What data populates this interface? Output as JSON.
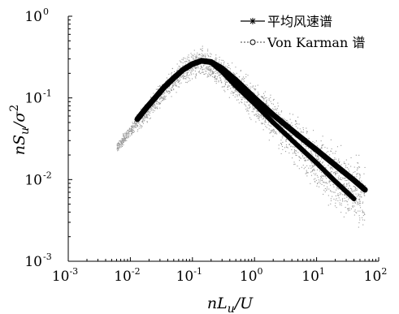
{
  "chart_data": {
    "type": "line",
    "title": "",
    "xlabel": "nL_u/U",
    "ylabel": "nS_u/σ^2",
    "x_scale": "log",
    "y_scale": "log",
    "xlim": [
      0.001,
      100
    ],
    "ylim": [
      0.001,
      1
    ],
    "x_ticks": [
      {
        "base": "10",
        "exp": "-3",
        "value": 0.001
      },
      {
        "base": "10",
        "exp": "-2",
        "value": 0.01
      },
      {
        "base": "10",
        "exp": "-1",
        "value": 0.1
      },
      {
        "base": "10",
        "exp": "0",
        "value": 1
      },
      {
        "base": "10",
        "exp": "1",
        "value": 10
      },
      {
        "base": "10",
        "exp": "2",
        "value": 100
      }
    ],
    "y_ticks": [
      {
        "base": "10",
        "exp": "-3",
        "value": 0.001
      },
      {
        "base": "10",
        "exp": "-2",
        "value": 0.01
      },
      {
        "base": "10",
        "exp": "-1",
        "value": 0.1
      },
      {
        "base": "10",
        "exp": "0",
        "value": 1
      }
    ],
    "grid": false,
    "legend_position": "top-right",
    "series": [
      {
        "name": "平均风速谱",
        "marker": "asterisk",
        "color": "#000000",
        "x": [
          0.013,
          0.018,
          0.025,
          0.035,
          0.05,
          0.07,
          0.1,
          0.14,
          0.2,
          0.3,
          0.5,
          1,
          2,
          5,
          10,
          20,
          40
        ],
        "y": [
          0.055,
          0.075,
          0.1,
          0.135,
          0.175,
          0.22,
          0.26,
          0.285,
          0.27,
          0.21,
          0.14,
          0.085,
          0.05,
          0.026,
          0.016,
          0.0095,
          0.0058
        ]
      },
      {
        "name": "Von Karman 谱",
        "marker": "circle",
        "color": "#000000",
        "x": [
          0.013,
          0.018,
          0.025,
          0.035,
          0.05,
          0.07,
          0.1,
          0.14,
          0.2,
          0.3,
          0.5,
          1,
          2,
          5,
          10,
          20,
          40,
          60
        ],
        "y": [
          0.055,
          0.075,
          0.1,
          0.135,
          0.175,
          0.22,
          0.26,
          0.285,
          0.275,
          0.23,
          0.165,
          0.1,
          0.062,
          0.035,
          0.023,
          0.015,
          0.0098,
          0.0075
        ]
      }
    ],
    "scatter_cloud": {
      "color": "#9a9a9a",
      "band_center_x": [
        0.006,
        0.01,
        0.02,
        0.05,
        0.1,
        0.15,
        0.3,
        1,
        3,
        10,
        30,
        60
      ],
      "band_center_y": [
        0.025,
        0.04,
        0.075,
        0.17,
        0.26,
        0.27,
        0.2,
        0.09,
        0.04,
        0.017,
        0.0085,
        0.006
      ],
      "band_half_width_decades": [
        0.08,
        0.12,
        0.18,
        0.22,
        0.24,
        0.24,
        0.26,
        0.3,
        0.38,
        0.45,
        0.55,
        0.6
      ]
    }
  }
}
